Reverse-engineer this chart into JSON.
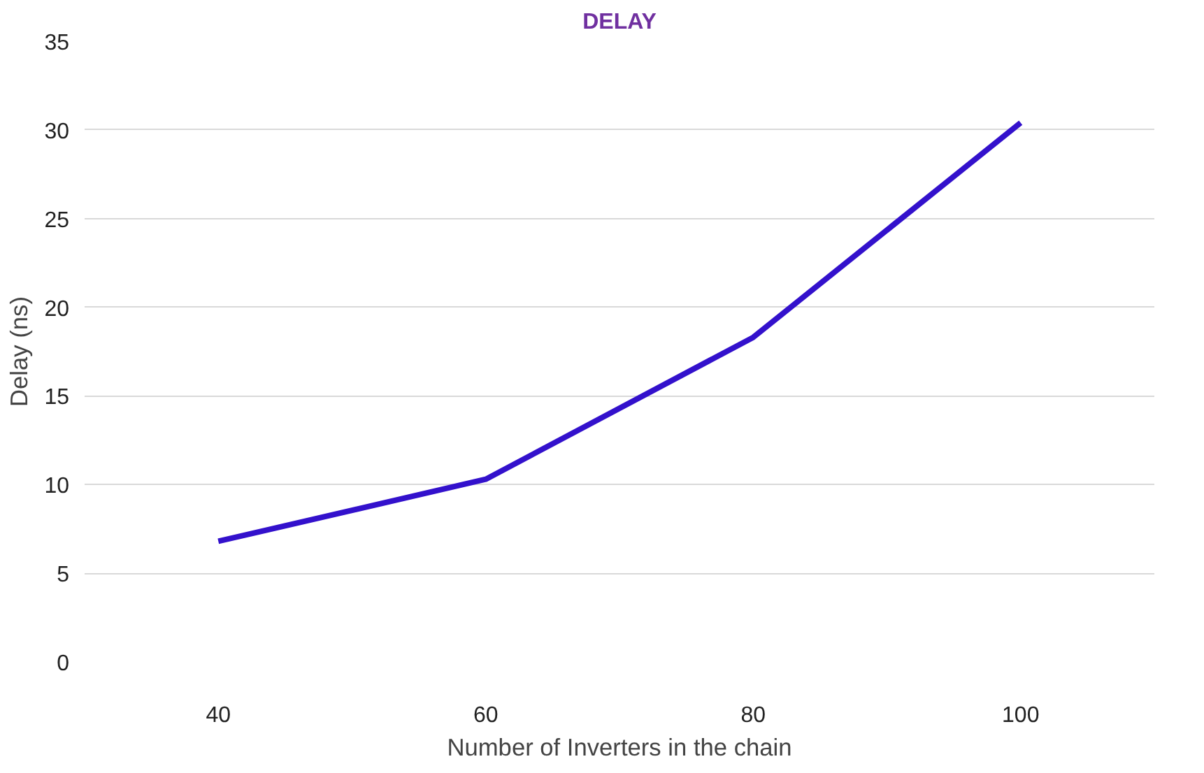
{
  "chart_data": {
    "type": "line",
    "title": "DELAY",
    "xlabel": "Number of Inverters in the chain",
    "ylabel": "Delay (ns)",
    "categories": [
      "40",
      "60",
      "80",
      "100"
    ],
    "series": [
      {
        "color": "#3311cc",
        "values": [
          6.8,
          10.3,
          18.3,
          30.4
        ]
      }
    ],
    "ylim": [
      0,
      35
    ],
    "yticks": [
      0,
      5,
      10,
      15,
      20,
      25,
      30,
      35
    ],
    "grid": "y",
    "marker": "none",
    "line_style": "solid"
  }
}
